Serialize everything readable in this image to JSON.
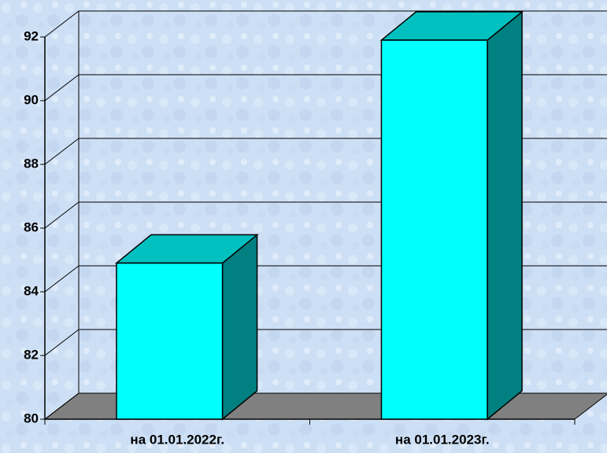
{
  "chart_data": {
    "type": "bar",
    "categories": [
      "на 01.01.2022г.",
      "на 01.01.2023г."
    ],
    "values": [
      84.9,
      91.9
    ],
    "color": "#00ffff",
    "side_color": "#008080",
    "top_color": "#00c0c0",
    "floor_color": "#808080",
    "ylim": [
      80,
      92
    ],
    "yticks": [
      80,
      82,
      84,
      86,
      88,
      90,
      92
    ],
    "grid": true
  }
}
